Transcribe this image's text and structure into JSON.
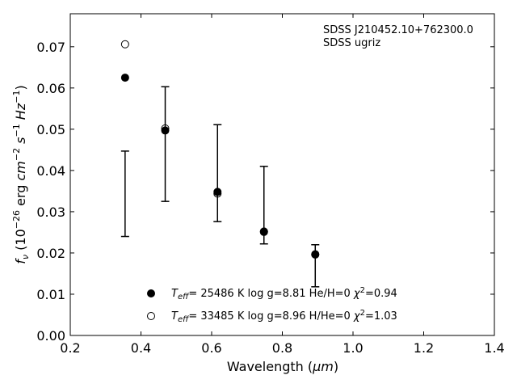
{
  "chart_data": {
    "type": "scatter",
    "xlabel_main": "Wavelength (",
    "xlabel_unit": "μm",
    "xlabel_close": ")",
    "ylabel": {
      "f": "f",
      "nu": "ν",
      "open": " (10",
      "exp1": "−26",
      "mid": " erg ",
      "cm": "cm",
      "exp2": "−2",
      "s": " s",
      "exp3": "−1",
      "hz": " Hz",
      "exp4": "−1",
      "close": ")"
    },
    "xlim": [
      0.2,
      1.4
    ],
    "ylim": [
      0.0,
      0.078
    ],
    "xticks": [
      "0.2",
      "0.4",
      "0.6",
      "0.8",
      "1.0",
      "1.2",
      "1.4"
    ],
    "yticks": [
      "0.00",
      "0.01",
      "0.02",
      "0.03",
      "0.04",
      "0.05",
      "0.06",
      "0.07"
    ],
    "annotation": [
      "SDSS J210452.10+762300.0",
      "SDSS ugriz"
    ],
    "observed": {
      "x": [
        0.3551,
        0.4686,
        0.6166,
        0.748,
        0.8932
      ],
      "y": [
        0.0345,
        0.0465,
        0.0393,
        0.0315,
        0.017
      ],
      "yerr_low": [
        0.024,
        0.0325,
        0.0276,
        0.0222,
        0.0118
      ],
      "yerr_high": [
        0.0447,
        0.0603,
        0.0511,
        0.041,
        0.022
      ]
    },
    "series": [
      {
        "name_parts": {
          "t": "T",
          "sub": "eff",
          "rest": "= 25486 K  log g=8.81  He/H=0  ",
          "chi": "χ",
          "sup": "2",
          "tail": "=0.94"
        },
        "marker": "filled",
        "x": [
          0.3551,
          0.4686,
          0.6166,
          0.748,
          0.8932
        ],
        "y": [
          0.0625,
          0.0497,
          0.0348,
          0.0252,
          0.0197
        ]
      },
      {
        "name_parts": {
          "t": "T",
          "sub": "eff",
          "rest": "= 33485 K  log g=8.96  H/He=0  ",
          "chi": "χ",
          "sup": "2",
          "tail": "=1.03"
        },
        "marker": "open",
        "x": [
          0.3551,
          0.4686,
          0.6166,
          0.748,
          0.8932
        ],
        "y": [
          0.0706,
          0.0502,
          0.0344,
          0.0251,
          0.0196
        ]
      }
    ],
    "grid": false,
    "legend_position": "lower-center"
  }
}
